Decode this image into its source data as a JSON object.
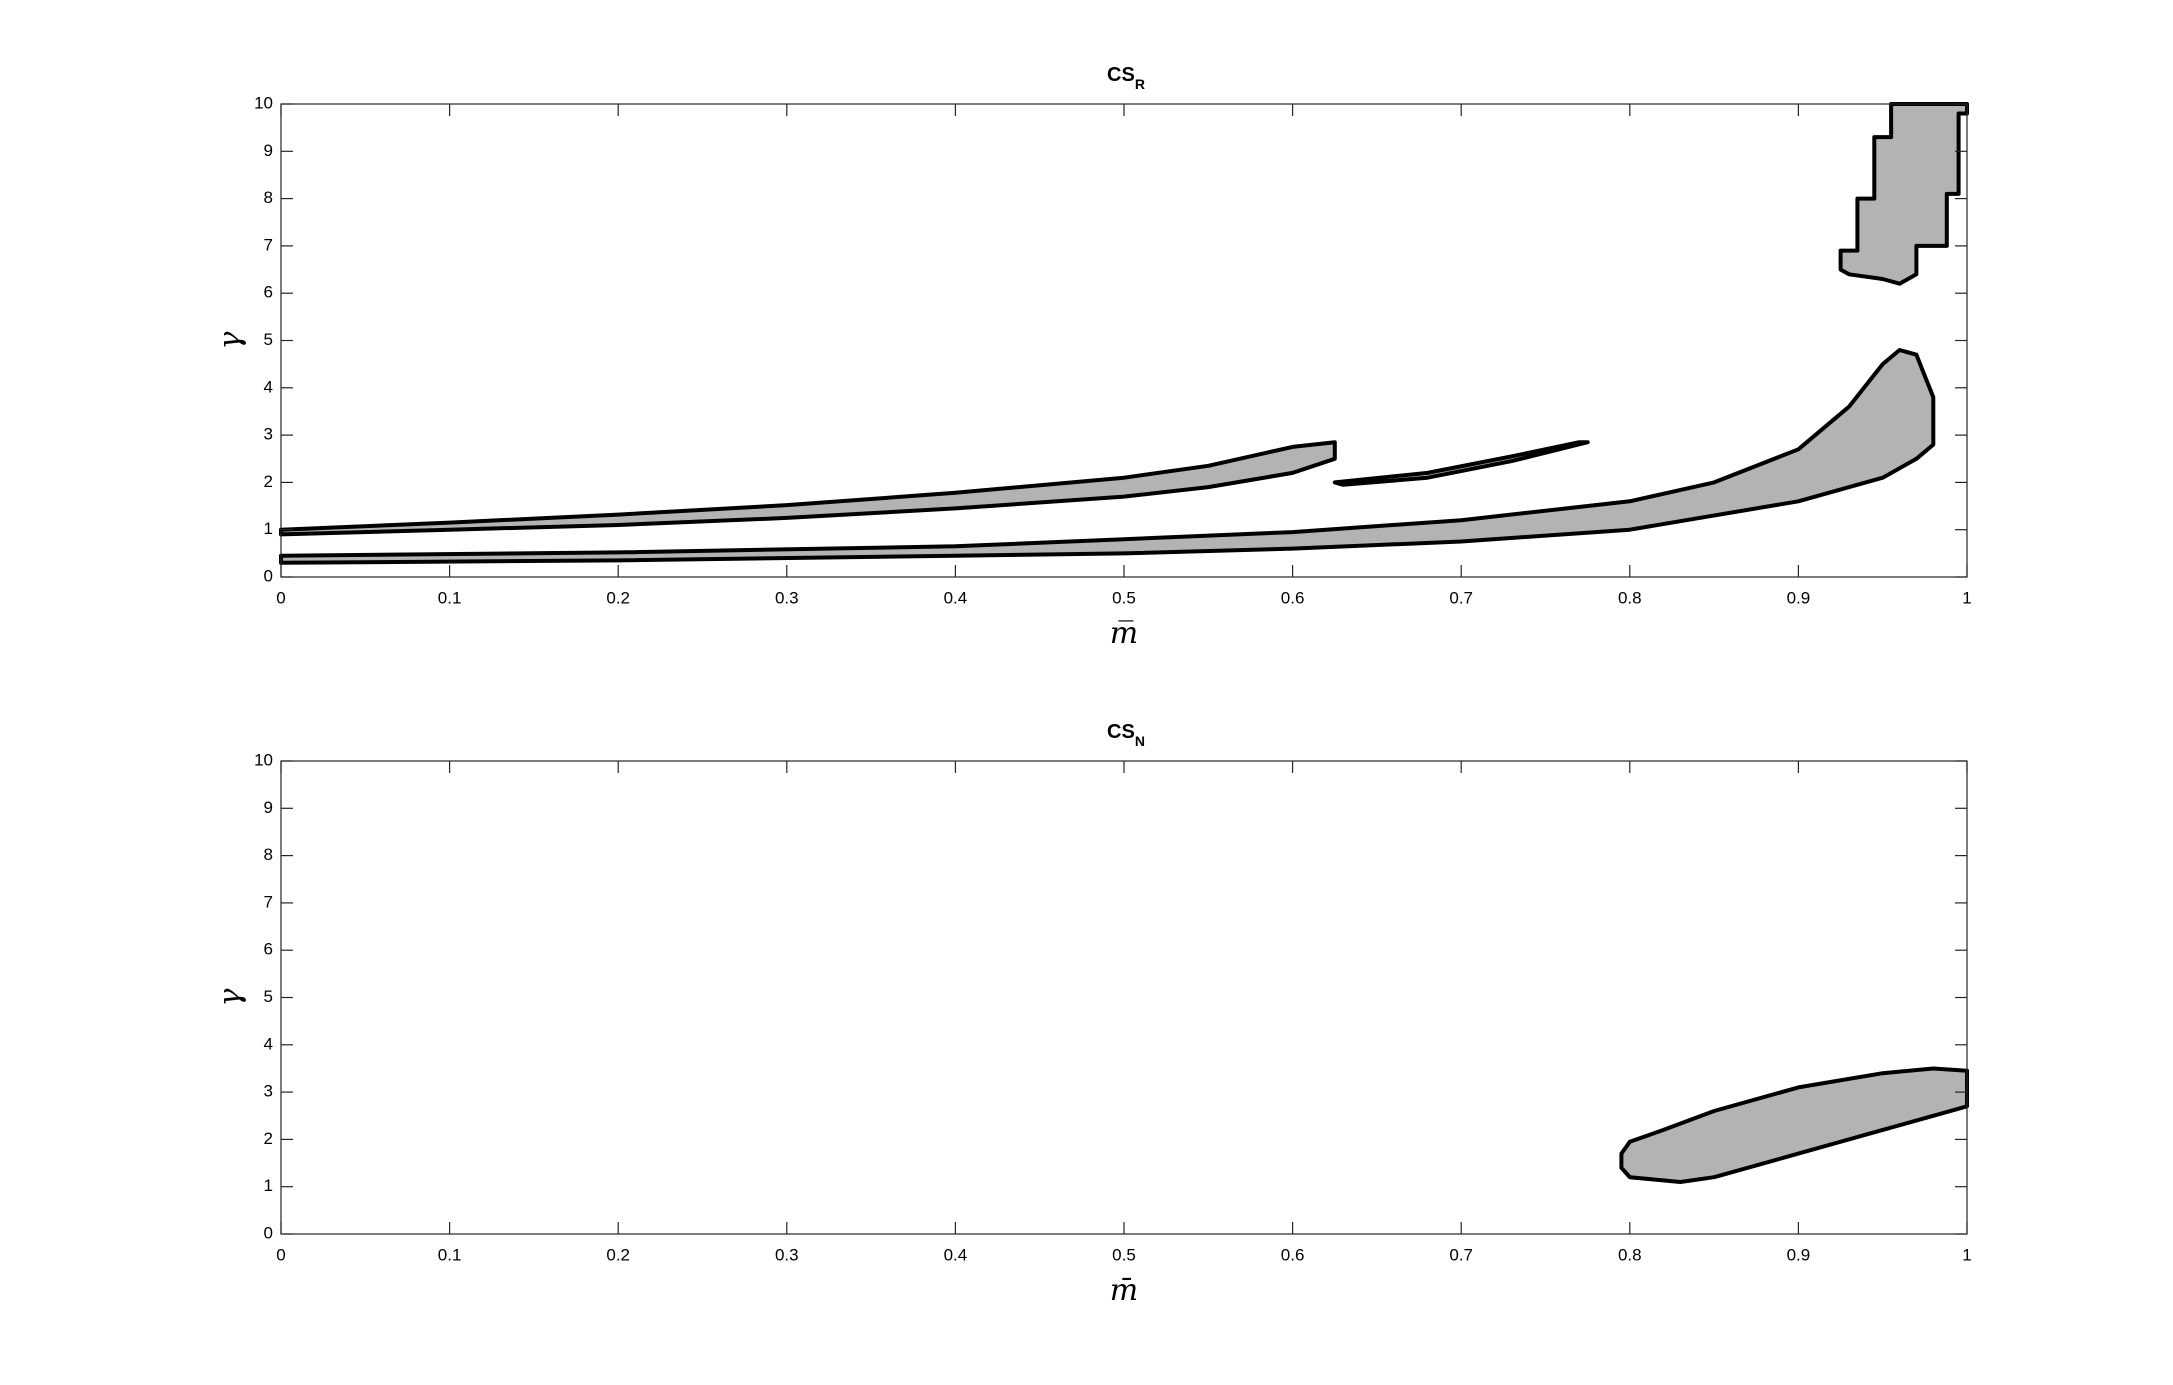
{
  "chart_data": [
    {
      "type": "region",
      "title": "CS",
      "title_subscript": "R",
      "xlabel": "m̅",
      "ylabel": "γ",
      "xlim": [
        0,
        1
      ],
      "ylim": [
        0,
        10
      ],
      "xticks": [
        0,
        0.1,
        0.2,
        0.3,
        0.4,
        0.5,
        0.6,
        0.7,
        0.8,
        0.9,
        1
      ],
      "yticks": [
        0,
        1,
        2,
        3,
        4,
        5,
        6,
        7,
        8,
        9,
        10
      ],
      "color": "#b3b3b3",
      "edgecolor": "#000000",
      "series": [
        {
          "x": [
            0,
            0.1,
            0.2,
            0.3,
            0.4,
            0.5,
            0.55,
            0.6,
            0.625,
            0.625,
            0.6,
            0.55,
            0.5,
            0.4,
            0.3,
            0.2,
            0.1,
            0
          ],
          "y": [
            1.0,
            1.15,
            1.32,
            1.52,
            1.78,
            2.1,
            2.35,
            2.75,
            2.85,
            2.5,
            2.2,
            1.9,
            1.7,
            1.45,
            1.25,
            1.1,
            1.0,
            0.9
          ]
        },
        {
          "x": [
            0.625,
            0.68,
            0.73,
            0.77,
            0.775,
            0.73,
            0.68,
            0.63
          ],
          "y": [
            2.0,
            2.2,
            2.55,
            2.85,
            2.85,
            2.45,
            2.1,
            1.95
          ]
        },
        {
          "x": [
            0,
            0.2,
            0.4,
            0.5,
            0.6,
            0.7,
            0.8,
            0.85,
            0.9,
            0.93,
            0.95,
            0.96,
            0.97,
            0.98,
            0.98,
            0.97,
            0.95,
            0.9,
            0.8,
            0.7,
            0.6,
            0.5,
            0.4,
            0.2,
            0
          ],
          "y": [
            0.45,
            0.52,
            0.65,
            0.8,
            0.95,
            1.2,
            1.6,
            2.0,
            2.7,
            3.6,
            4.5,
            4.8,
            4.7,
            3.8,
            2.8,
            2.5,
            2.1,
            1.6,
            1.0,
            0.75,
            0.6,
            0.5,
            0.45,
            0.35,
            0.3
          ]
        },
        {
          "x": [
            0.925,
            0.925,
            0.935,
            0.935,
            0.945,
            0.945,
            0.955,
            0.955,
            1,
            1,
            0.995,
            0.995,
            0.988,
            0.988,
            0.97,
            0.97,
            0.96,
            0.95,
            0.93
          ],
          "y": [
            6.5,
            6.9,
            6.9,
            8.0,
            8.0,
            9.3,
            9.3,
            10,
            10,
            9.8,
            9.8,
            8.1,
            8.1,
            7.0,
            7.0,
            6.4,
            6.2,
            6.3,
            6.4
          ]
        }
      ]
    },
    {
      "type": "region",
      "title": "CS",
      "title_subscript": "N",
      "xlabel": "m̄",
      "ylabel": "γ",
      "xlim": [
        0,
        1
      ],
      "ylim": [
        0,
        10
      ],
      "xticks": [
        0,
        0.1,
        0.2,
        0.3,
        0.4,
        0.5,
        0.6,
        0.7,
        0.8,
        0.9,
        1
      ],
      "yticks": [
        0,
        1,
        2,
        3,
        4,
        5,
        6,
        7,
        8,
        9,
        10
      ],
      "color": "#b3b3b3",
      "edgecolor": "#000000",
      "series": [
        {
          "x": [
            0.795,
            0.8,
            0.82,
            0.85,
            0.9,
            0.95,
            0.98,
            1,
            1,
            0.98,
            0.95,
            0.9,
            0.85,
            0.83,
            0.8,
            0.795
          ],
          "y": [
            1.7,
            1.95,
            2.2,
            2.6,
            3.1,
            3.4,
            3.5,
            3.45,
            2.7,
            2.5,
            2.2,
            1.7,
            1.2,
            1.1,
            1.2,
            1.4
          ]
        }
      ]
    }
  ]
}
